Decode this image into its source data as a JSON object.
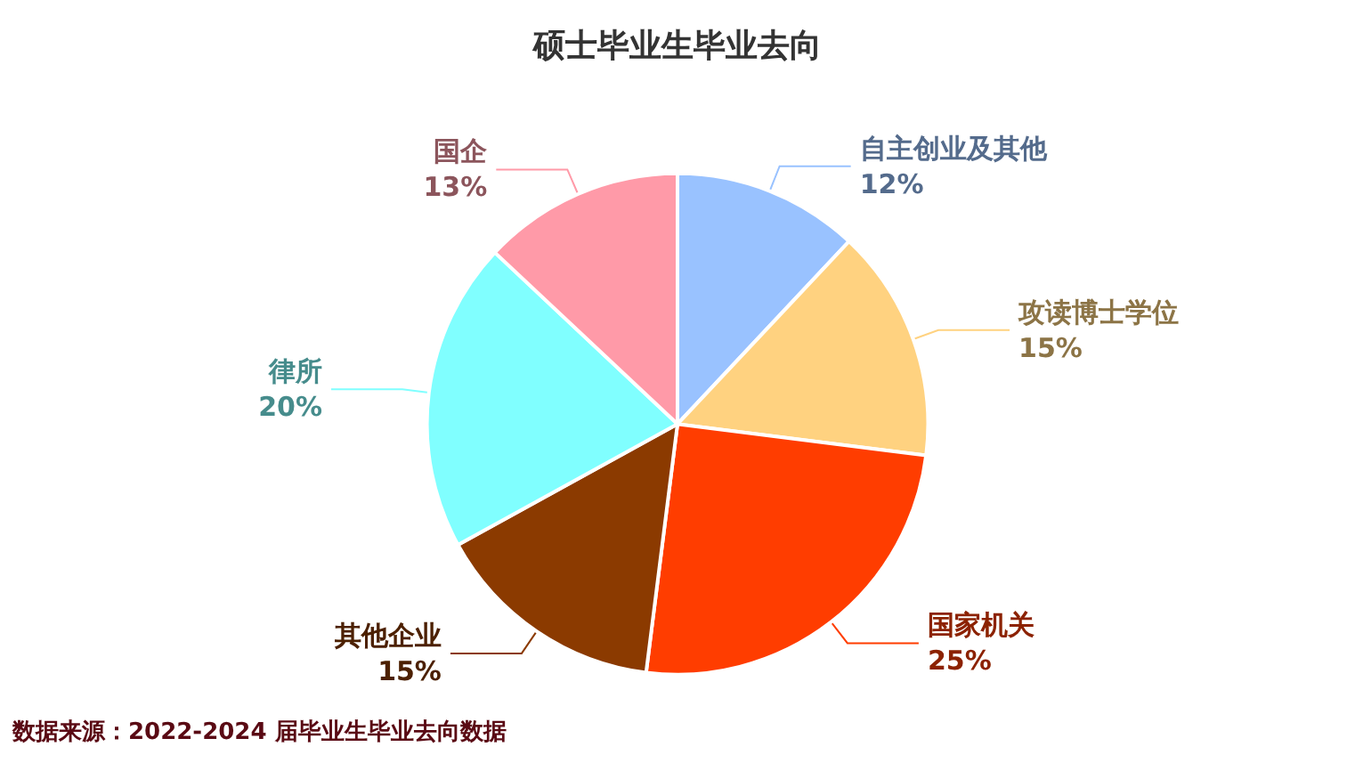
{
  "chart_data": {
    "type": "pie",
    "title": "硕士毕业生毕业去向",
    "categories": [
      "自主创业及其他",
      "攻读博士学位",
      "国家机关",
      "其他企业",
      "律所",
      "国企"
    ],
    "values": [
      12,
      15,
      25,
      15,
      20,
      13
    ],
    "value_labels": [
      "12%",
      "15%",
      "25%",
      "15%",
      "20%",
      "13%"
    ],
    "colors": [
      "#99c2ff",
      "#ffd280",
      "#ff3d00",
      "#8b3a00",
      "#80ffff",
      "#ff9aa8"
    ],
    "annotations": [
      "数据来源：2022-2024 届毕业生毕业去向数据"
    ],
    "legend": false
  }
}
